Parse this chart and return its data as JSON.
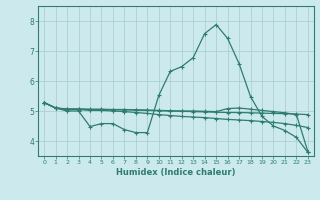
{
  "xlabel": "Humidex (Indice chaleur)",
  "xlim": [
    -0.5,
    23.5
  ],
  "ylim": [
    3.5,
    8.5
  ],
  "yticks": [
    4,
    5,
    6,
    7,
    8
  ],
  "xticks": [
    0,
    1,
    2,
    3,
    4,
    5,
    6,
    7,
    8,
    9,
    10,
    11,
    12,
    13,
    14,
    15,
    16,
    17,
    18,
    19,
    20,
    21,
    22,
    23
  ],
  "bg_color": "#cce9ee",
  "line_color": "#2e7d6e",
  "grid_color": "#a8ccce",
  "lines": [
    {
      "x": [
        0,
        1,
        2,
        3,
        4,
        5,
        6,
        7,
        8,
        9,
        10,
        11,
        12,
        13,
        14,
        15,
        16,
        17,
        18,
        19,
        20,
        21,
        22,
        23
      ],
      "y": [
        5.28,
        5.1,
        5.0,
        5.0,
        4.48,
        4.58,
        4.58,
        4.38,
        4.28,
        4.28,
        5.52,
        6.32,
        6.48,
        6.78,
        7.58,
        7.88,
        7.42,
        6.58,
        5.48,
        4.82,
        4.5,
        4.35,
        4.12,
        3.62
      ]
    },
    {
      "x": [
        0,
        1,
        2,
        3,
        4,
        5,
        6,
        7,
        8,
        9,
        10,
        11,
        12,
        13,
        14,
        15,
        16,
        17,
        18,
        19,
        20,
        21,
        22,
        23
      ],
      "y": [
        5.28,
        5.1,
        5.05,
        5.05,
        5.02,
        5.02,
        5.0,
        4.98,
        4.95,
        4.92,
        4.88,
        4.85,
        4.82,
        4.8,
        4.78,
        4.75,
        4.72,
        4.7,
        4.68,
        4.65,
        4.62,
        4.58,
        4.52,
        4.45
      ]
    },
    {
      "x": [
        0,
        1,
        2,
        3,
        4,
        5,
        6,
        7,
        8,
        9,
        10,
        11,
        12,
        13,
        14,
        15,
        16,
        17,
        18,
        19,
        20,
        21,
        22,
        23
      ],
      "y": [
        5.28,
        5.1,
        5.06,
        5.06,
        5.05,
        5.05,
        5.04,
        5.04,
        5.03,
        5.02,
        5.01,
        5.0,
        4.99,
        4.98,
        4.97,
        4.96,
        4.95,
        4.95,
        4.94,
        4.93,
        4.92,
        4.91,
        4.9,
        4.88
      ]
    },
    {
      "x": [
        0,
        1,
        2,
        3,
        4,
        5,
        6,
        7,
        8,
        9,
        10,
        11,
        12,
        13,
        14,
        15,
        16,
        17,
        18,
        19,
        20,
        21,
        22,
        23
      ],
      "y": [
        5.28,
        5.1,
        5.07,
        5.07,
        5.06,
        5.06,
        5.05,
        5.05,
        5.04,
        5.03,
        5.02,
        5.01,
        5.0,
        5.0,
        4.99,
        4.98,
        5.08,
        5.1,
        5.06,
        5.02,
        4.98,
        4.94,
        4.88,
        3.65
      ]
    }
  ]
}
